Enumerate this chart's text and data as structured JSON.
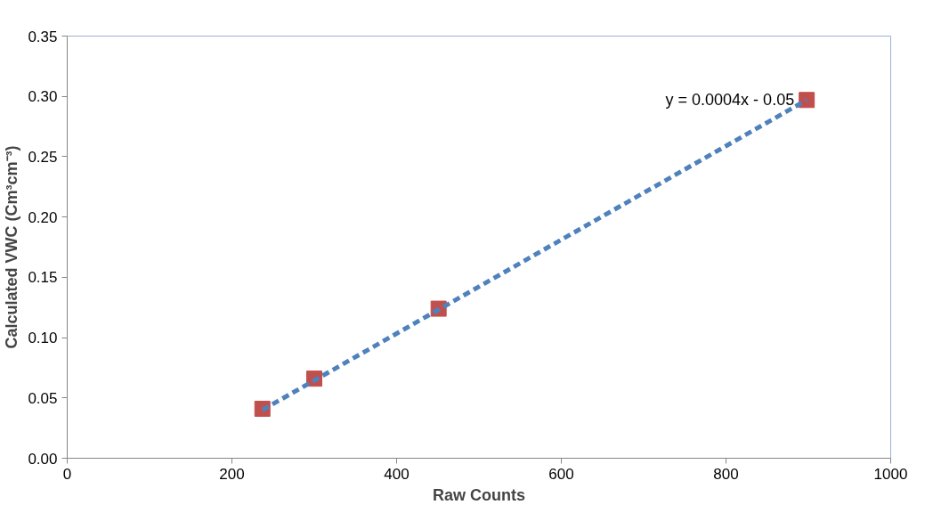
{
  "chart_data": {
    "type": "scatter",
    "xlabel": "Raw Counts",
    "ylabel": "Calculated VWC (Cm³cm⁻³)",
    "xlim": [
      0,
      1000
    ],
    "xticks": [
      0,
      200,
      400,
      600,
      800,
      1000
    ],
    "ylim": [
      0,
      0.35
    ],
    "yticks": [
      {
        "value": 0,
        "label": "0.00"
      },
      {
        "value": 0.05,
        "label": "0.05"
      },
      {
        "value": 0.1,
        "label": "0.10"
      },
      {
        "value": 0.15,
        "label": "0.15"
      },
      {
        "value": 0.2,
        "label": "0.20"
      },
      {
        "value": 0.25,
        "label": "0.25"
      },
      {
        "value": 0.3,
        "label": "0.30"
      },
      {
        "value": 0.35,
        "label": "0.35"
      }
    ],
    "grid": false,
    "series": [
      {
        "marker": "square",
        "color": "#c0504d",
        "x": [
          237,
          300,
          451,
          898
        ],
        "values": [
          0.041,
          0.066,
          0.124,
          0.297
        ]
      },
      {
        "type": "line",
        "line_style": "dashed",
        "marker": "none",
        "color": "#4f81bd",
        "x": [
          237,
          898
        ],
        "values": [
          0.04,
          0.297
        ]
      }
    ],
    "annotations": [
      {
        "text": "y = 0.0004x - 0.05",
        "x": 898,
        "y": 0.297
      }
    ]
  }
}
